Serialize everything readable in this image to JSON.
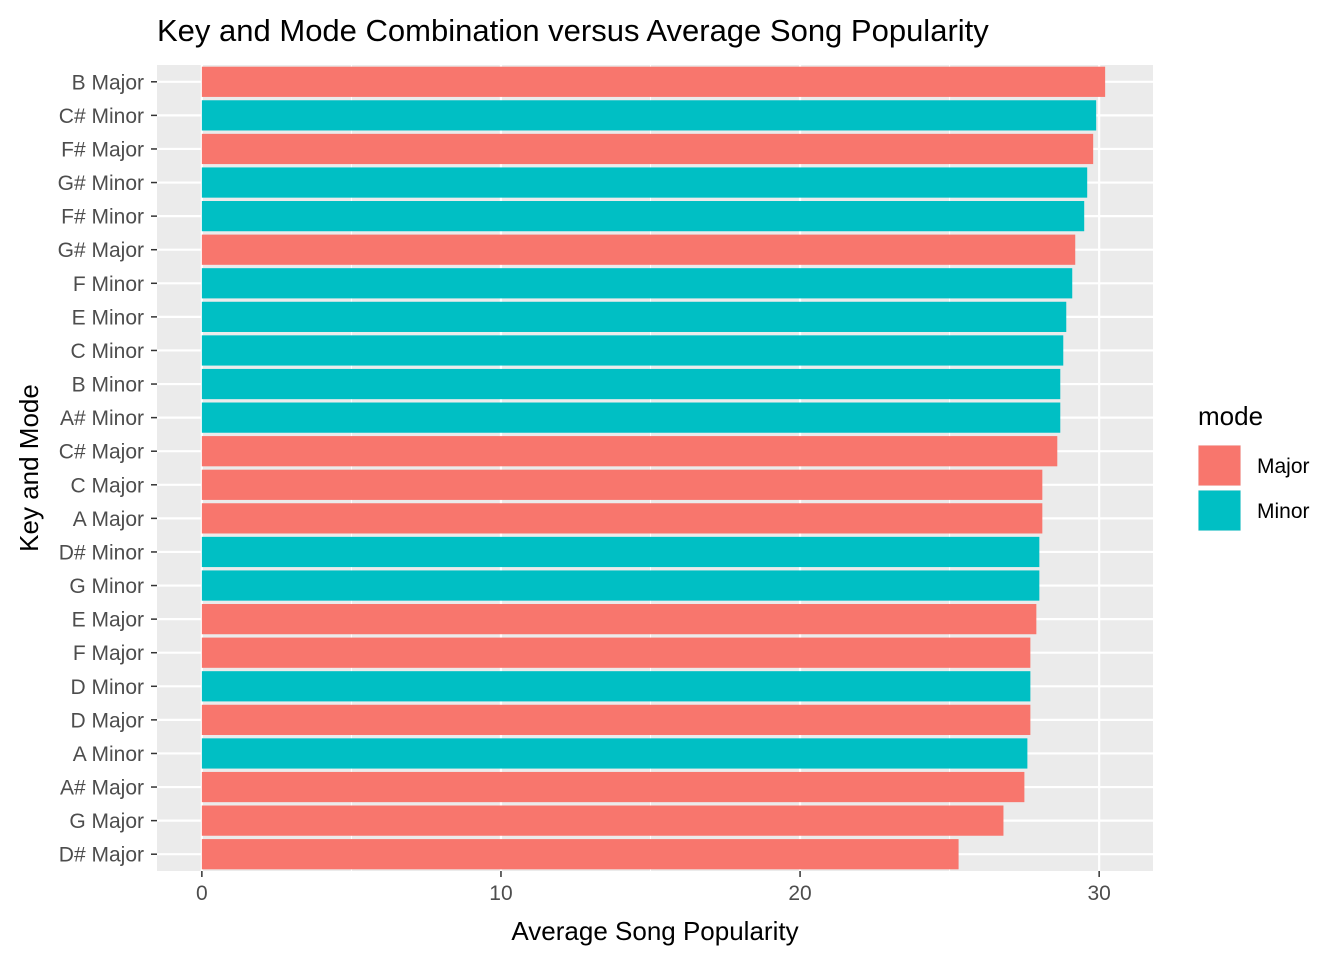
{
  "chart_data": {
    "type": "bar",
    "orientation": "horizontal",
    "title": "Key and Mode Combination versus Average Song Popularity",
    "xlabel": "Average Song Popularity",
    "ylabel": "Key and Mode",
    "xlim": [
      -1.5,
      31.8
    ],
    "xticks": [
      0,
      10,
      20,
      30
    ],
    "xtick_labels": [
      "0",
      "10",
      "20",
      "30"
    ],
    "grid": true,
    "legend": {
      "title": "mode",
      "position": "right",
      "entries": [
        {
          "label": "Major",
          "color": "#F8766D"
        },
        {
          "label": "Minor",
          "color": "#00BFC4"
        }
      ]
    },
    "categories": [
      "B Major",
      "C# Minor",
      "F# Major",
      "G# Minor",
      "F# Minor",
      "G# Major",
      "F Minor",
      "E Minor",
      "C Minor",
      "B Minor",
      "A# Minor",
      "C# Major",
      "C Major",
      "A Major",
      "D# Minor",
      "G Minor",
      "E Major",
      "F Major",
      "D Minor",
      "D Major",
      "A Minor",
      "A# Major",
      "G Major",
      "D# Major"
    ],
    "values": [
      30.2,
      29.9,
      29.8,
      29.6,
      29.5,
      29.2,
      29.1,
      28.9,
      28.8,
      28.7,
      28.7,
      28.6,
      28.1,
      28.1,
      28.0,
      28.0,
      27.9,
      27.7,
      27.7,
      27.7,
      27.6,
      27.5,
      26.8,
      25.3
    ],
    "modes": [
      "Major",
      "Minor",
      "Major",
      "Minor",
      "Minor",
      "Major",
      "Minor",
      "Minor",
      "Minor",
      "Minor",
      "Minor",
      "Major",
      "Major",
      "Major",
      "Minor",
      "Minor",
      "Major",
      "Major",
      "Minor",
      "Major",
      "Minor",
      "Major",
      "Major",
      "Major"
    ]
  },
  "colors": {
    "panel_background": "#EBEBEB",
    "grid_major": "#FFFFFF",
    "Major": "#F8766D",
    "Minor": "#00BFC4"
  }
}
